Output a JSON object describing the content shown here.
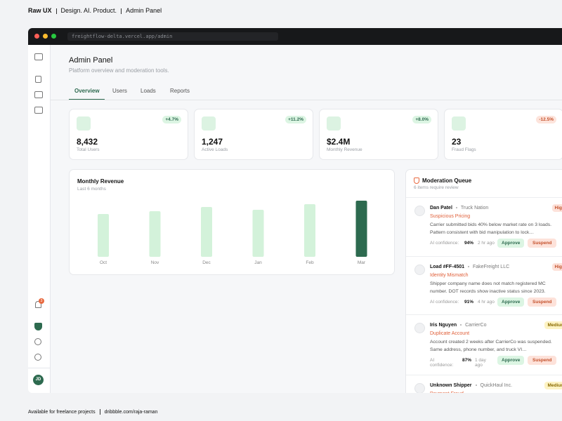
{
  "header": {
    "brand": "Raw UX",
    "parts": [
      "Design. AI. Product.",
      "Admin Panel"
    ]
  },
  "browser": {
    "url": "freightflow-delta.vercel.app/admin"
  },
  "sidebar": {
    "notification_count": "3",
    "avatar": "JD"
  },
  "page": {
    "title": "Admin Panel",
    "subtitle": "Platform overview and moderation tools.",
    "tabs": [
      "Overview",
      "Users",
      "Loads",
      "Reports"
    ]
  },
  "stats": [
    {
      "value": "8,432",
      "label": "Total Users",
      "change": "+4.7%"
    },
    {
      "value": "1,247",
      "label": "Active Loads",
      "change": "+11.2%"
    },
    {
      "value": "$2.4M",
      "label": "Monthly Revenue",
      "change": "+8.0%"
    },
    {
      "value": "23",
      "label": "Fraud Flags",
      "change": "-12.5%"
    }
  ],
  "chart_data": {
    "type": "bar",
    "title": "Monthly Revenue",
    "subtitle": "Last 6 months",
    "categories": [
      "Oct",
      "Nov",
      "Dec",
      "Jan",
      "Feb",
      "Mar"
    ],
    "values": [
      1.83,
      1.95,
      2.13,
      2.01,
      2.25,
      2.4
    ],
    "color": "#d3f2da",
    "highlight_color": "#2d6a4f"
  },
  "moderation": {
    "title": "Moderation Queue",
    "subtitle": "6 items require review",
    "confidence_label": "AI confidence:",
    "items": [
      {
        "name": "Dan Patel",
        "org": "Truck Nation",
        "severity": "High",
        "issue": "Suspicious Pricing",
        "description": "Carrier submitted bids 40% below market rate on 3 loads. Pattern consistent with bid manipulation to lock…",
        "confidence": "94%",
        "time": "2 hr ago",
        "actions": [
          "Approve",
          "Suspend"
        ]
      },
      {
        "name": "Load #FF-4501",
        "org": "FakeFreight LLC",
        "severity": "High",
        "issue": "Identity Mismatch",
        "description": "Shipper company name does not match registered MC number. DOT records show inactive status since 2023.",
        "confidence": "91%",
        "time": "4 hr ago",
        "actions": [
          "Approve",
          "Suspend"
        ]
      },
      {
        "name": "Iris Nguyen",
        "org": "CarrierCo",
        "severity": "Medium",
        "issue": "Duplicate Account",
        "description": "Account created 2 weeks after CarrierCo was suspended. Same address, phone number, and truck VI…",
        "confidence": "87%",
        "time": "1 day ago",
        "actions": [
          "Approve",
          "Suspend"
        ]
      },
      {
        "name": "Unknown Shipper",
        "org": "QuickHaul Inc.",
        "severity": "Medium",
        "issue": "Payment Fraud"
      }
    ]
  },
  "footer": {
    "parts": [
      "Available for freelance projects",
      "dribbble.com/raja-raman"
    ]
  }
}
